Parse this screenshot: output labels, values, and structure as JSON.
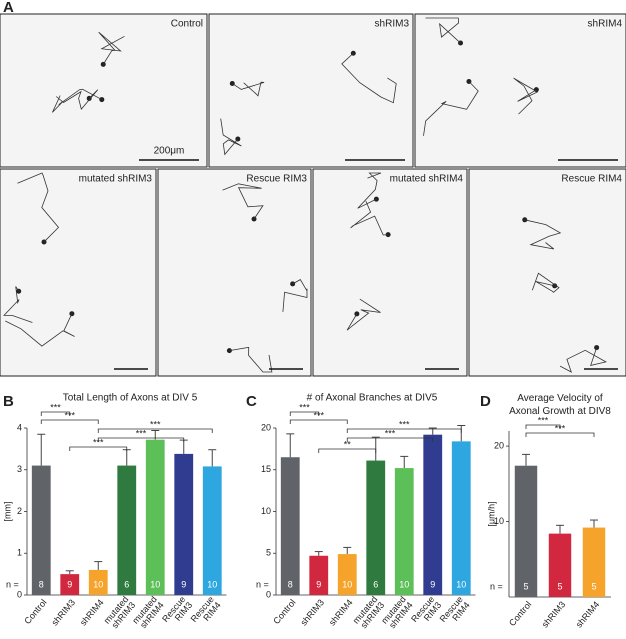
{
  "panels": {
    "A": "A",
    "B": "B",
    "C": "C",
    "D": "D"
  },
  "images": [
    {
      "label": "Control",
      "scale_bar": "200μm"
    },
    {
      "label": "shRIM3"
    },
    {
      "label": "shRIM4"
    },
    {
      "label": "mutated shRIM3"
    },
    {
      "label": "Rescue RIM3"
    },
    {
      "label": "mutated shRIM4"
    },
    {
      "label": "Rescue RIM4"
    }
  ],
  "chart_data": [
    {
      "type": "bar",
      "title": "Total Length of Axons at DIV 5",
      "ylabel": "[mm]",
      "n_label": "n =",
      "categories": [
        "Control",
        "shRIM3",
        "shRIM4",
        "mutated shRIM3",
        "mutated shRIM4",
        "Rescue RIM3",
        "Rescue RIM4"
      ],
      "values": [
        3.1,
        0.5,
        0.6,
        3.1,
        3.72,
        3.38,
        3.08
      ],
      "errors": [
        0.75,
        0.08,
        0.2,
        0.38,
        0.22,
        0.33,
        0.4
      ],
      "n": [
        8,
        9,
        10,
        6,
        10,
        9,
        10
      ],
      "colors": [
        "#606368",
        "#d1283f",
        "#f5a32a",
        "#2e7a3f",
        "#5dbf57",
        "#2f3c8f",
        "#2ea6e0"
      ],
      "ylim": [
        0,
        4
      ],
      "yticks": [
        0,
        1,
        2,
        3,
        4
      ],
      "significance": [
        {
          "between": [
            "Control",
            "shRIM3"
          ],
          "label": "***"
        },
        {
          "between": [
            "Control",
            "shRIM4"
          ],
          "label": "***"
        },
        {
          "between": [
            "shRIM3",
            "mutated shRIM3"
          ],
          "label": "***"
        },
        {
          "between": [
            "shRIM4",
            "Rescue RIM3"
          ],
          "label": "***"
        },
        {
          "between": [
            "shRIM4",
            "Rescue RIM4"
          ],
          "label": "***"
        }
      ]
    },
    {
      "type": "bar",
      "title": "# of Axonal Branches at DIV5",
      "n_label": "n =",
      "categories": [
        "Control",
        "shRIM3",
        "shRIM4",
        "mutated shRIM3",
        "mutated shRIM4",
        "Rescue RIM3",
        "Rescue RIM4"
      ],
      "values": [
        16.5,
        4.7,
        4.9,
        16.1,
        15.2,
        19.2,
        18.4
      ],
      "errors": [
        2.8,
        0.5,
        0.8,
        2.8,
        1.4,
        0.8,
        1.9
      ],
      "n": [
        8,
        9,
        10,
        6,
        10,
        9,
        10
      ],
      "colors": [
        "#606368",
        "#d1283f",
        "#f5a32a",
        "#2e7a3f",
        "#5dbf57",
        "#2f3c8f",
        "#2ea6e0"
      ],
      "ylim": [
        0,
        20
      ],
      "yticks": [
        0,
        5,
        10,
        15,
        20
      ],
      "significance": [
        {
          "between": [
            "Control",
            "shRIM3"
          ],
          "label": "***"
        },
        {
          "between": [
            "Control",
            "shRIM4"
          ],
          "label": "***"
        },
        {
          "between": [
            "shRIM3",
            "mutated shRIM3"
          ],
          "label": "**"
        },
        {
          "between": [
            "shRIM4",
            "Rescue RIM3"
          ],
          "label": "***"
        },
        {
          "between": [
            "shRIM4",
            "Rescue RIM4"
          ],
          "label": "***"
        }
      ]
    },
    {
      "type": "bar",
      "title": "Average Velocity of Axonal Growth at DIV8",
      "ylabel": "[μm/h]",
      "n_label": "n =",
      "categories": [
        "Control",
        "shRIM3",
        "shRIM4"
      ],
      "values": [
        17.4,
        8.4,
        9.2
      ],
      "errors": [
        1.5,
        1.1,
        1.0
      ],
      "n": [
        5,
        5,
        5
      ],
      "colors": [
        "#606368",
        "#d1283f",
        "#f5a32a"
      ],
      "ylim": [
        0,
        22
      ],
      "yticks": [
        10,
        20
      ],
      "significance": [
        {
          "between": [
            "Control",
            "shRIM3"
          ],
          "label": "***"
        },
        {
          "between": [
            "Control",
            "shRIM4"
          ],
          "label": "***"
        }
      ]
    }
  ]
}
